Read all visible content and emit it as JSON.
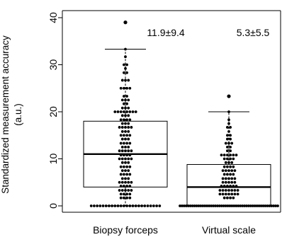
{
  "chart_data": {
    "type": "box",
    "title": "",
    "xlabel": "",
    "ylabel_line1": "Standardized measurement accuracy",
    "ylabel_line2": "(a.u.)",
    "ylim": [
      -1,
      41
    ],
    "yticks": [
      0,
      10,
      20,
      30,
      40
    ],
    "grid": false,
    "legend": "none",
    "categories": [
      "Biopsy forceps",
      "Virtual scale"
    ],
    "annotations": [
      "11.9±9.4",
      "5.3±5.5"
    ],
    "boxes": [
      {
        "category": "Biopsy forceps",
        "whisker_low": 0,
        "q1": 4,
        "median": 11,
        "q3": 18,
        "whisker_high": 33.3,
        "outliers": [
          39
        ]
      },
      {
        "category": "Virtual scale",
        "whisker_low": 0,
        "q1": 0,
        "median": 4,
        "q3": 8.8,
        "whisker_high": 20,
        "outliers": [
          23.3
        ]
      }
    ],
    "points": [
      {
        "category": "Biopsy forceps",
        "bins": [
          [
            0,
            24
          ],
          [
            1.7,
            4
          ],
          [
            2.5,
            4
          ],
          [
            3.3,
            5
          ],
          [
            4.2,
            4
          ],
          [
            5,
            5
          ],
          [
            5.8,
            3
          ],
          [
            6.7,
            4
          ],
          [
            7.5,
            3
          ],
          [
            8.3,
            4
          ],
          [
            9.2,
            3
          ],
          [
            10,
            5
          ],
          [
            10.8,
            4
          ],
          [
            11.7,
            5
          ],
          [
            12.5,
            3
          ],
          [
            13.3,
            4
          ],
          [
            14.2,
            3
          ],
          [
            15,
            4
          ],
          [
            15.8,
            3
          ],
          [
            16.7,
            5
          ],
          [
            17.5,
            3
          ],
          [
            18.3,
            4
          ],
          [
            19.2,
            3
          ],
          [
            20,
            8
          ],
          [
            20.8,
            3
          ],
          [
            21.7,
            2
          ],
          [
            22.5,
            3
          ],
          [
            23.3,
            2
          ],
          [
            25,
            4
          ],
          [
            26.7,
            3
          ],
          [
            28.3,
            2
          ],
          [
            29.2,
            1
          ],
          [
            30,
            2
          ],
          [
            31.7,
            1
          ],
          [
            33.3,
            1
          ],
          [
            39,
            1
          ]
        ]
      },
      {
        "category": "Virtual scale",
        "bins": [
          [
            0,
            48
          ],
          [
            1.7,
            4
          ],
          [
            2.5,
            7
          ],
          [
            3.3,
            7
          ],
          [
            4.2,
            6
          ],
          [
            5,
            5
          ],
          [
            5.8,
            5
          ],
          [
            6.7,
            4
          ],
          [
            7.5,
            5
          ],
          [
            8.3,
            4
          ],
          [
            9.2,
            3
          ],
          [
            10,
            4
          ],
          [
            10.8,
            6
          ],
          [
            11.7,
            2
          ],
          [
            12.5,
            2
          ],
          [
            13.3,
            3
          ],
          [
            14.2,
            2
          ],
          [
            15,
            2
          ],
          [
            15.8,
            1
          ],
          [
            16.7,
            2
          ],
          [
            17.5,
            1
          ],
          [
            18.3,
            1
          ],
          [
            20,
            1
          ],
          [
            23.3,
            1
          ]
        ]
      }
    ]
  }
}
